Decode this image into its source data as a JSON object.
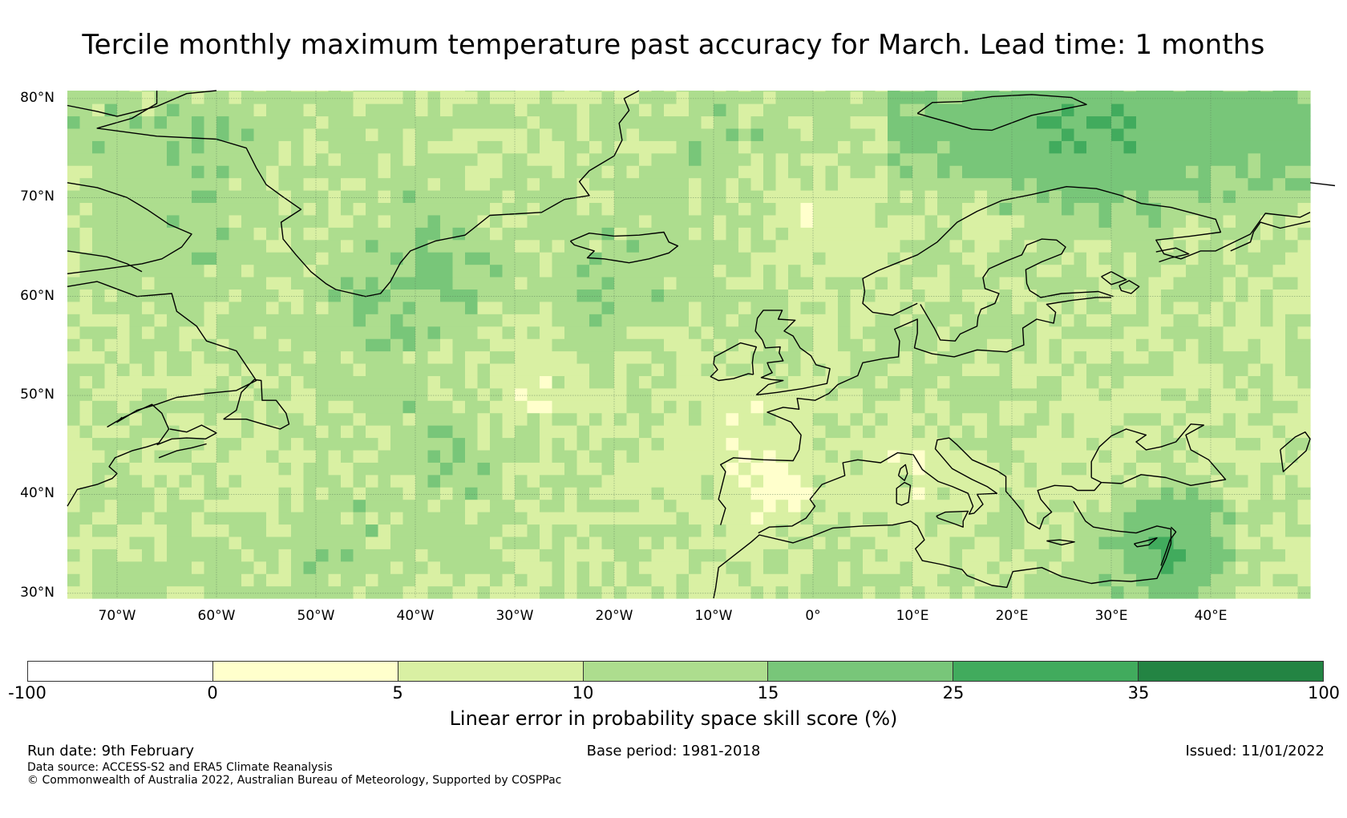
{
  "title": "Tercile monthly maximum temperature past accuracy for March. Lead time: 1 months",
  "map": {
    "extent": {
      "lon": [
        -75,
        50
      ],
      "lat": [
        29.5,
        80.8
      ]
    },
    "gridlines": true,
    "lat_ticks": [
      {
        "value": 80,
        "label": "80°N"
      },
      {
        "value": 70,
        "label": "70°N"
      },
      {
        "value": 60,
        "label": "60°N"
      },
      {
        "value": 50,
        "label": "50°N"
      },
      {
        "value": 40,
        "label": "40°N"
      },
      {
        "value": 30,
        "label": "30°N"
      }
    ],
    "lon_ticks": [
      {
        "value": -70,
        "label": "70°W"
      },
      {
        "value": -60,
        "label": "60°W"
      },
      {
        "value": -50,
        "label": "50°W"
      },
      {
        "value": -40,
        "label": "40°W"
      },
      {
        "value": -30,
        "label": "30°W"
      },
      {
        "value": -20,
        "label": "20°W"
      },
      {
        "value": -10,
        "label": "10°W"
      },
      {
        "value": 0,
        "label": "0°"
      },
      {
        "value": 10,
        "label": "10°E"
      },
      {
        "value": 20,
        "label": "20°E"
      },
      {
        "value": 30,
        "label": "30°E"
      },
      {
        "value": 40,
        "label": "40°E"
      }
    ],
    "coastline_color": "#000000",
    "gridline_color": "#5a7a5a"
  },
  "legend": {
    "label": "Linear error in probability space skill score (%)",
    "bins": [
      {
        "from": -100,
        "to": 0,
        "color": "#ffffff"
      },
      {
        "from": 0,
        "to": 5,
        "color": "#ffffcc"
      },
      {
        "from": 5,
        "to": 10,
        "color": "#d9f0a3"
      },
      {
        "from": 10,
        "to": 15,
        "color": "#addd8e"
      },
      {
        "from": 15,
        "to": 25,
        "color": "#78c679"
      },
      {
        "from": 25,
        "to": 35,
        "color": "#41ab5d"
      },
      {
        "from": 35,
        "to": 100,
        "color": "#238443"
      }
    ],
    "tick_labels": [
      "-100",
      "0",
      "5",
      "10",
      "15",
      "25",
      "35",
      "100"
    ]
  },
  "footer": {
    "run_date": "Run date: 9th February",
    "base_period": "Base period: 1981-2018",
    "issued": "Issued: 11/01/2022",
    "data_source": "Data source: ACCESS-S2 and ERA5 Climate Reanalysis",
    "copyright": "© Commonwealth of Australia 2022, Australian Bureau of Meteorology, Supported by COSPPac"
  }
}
